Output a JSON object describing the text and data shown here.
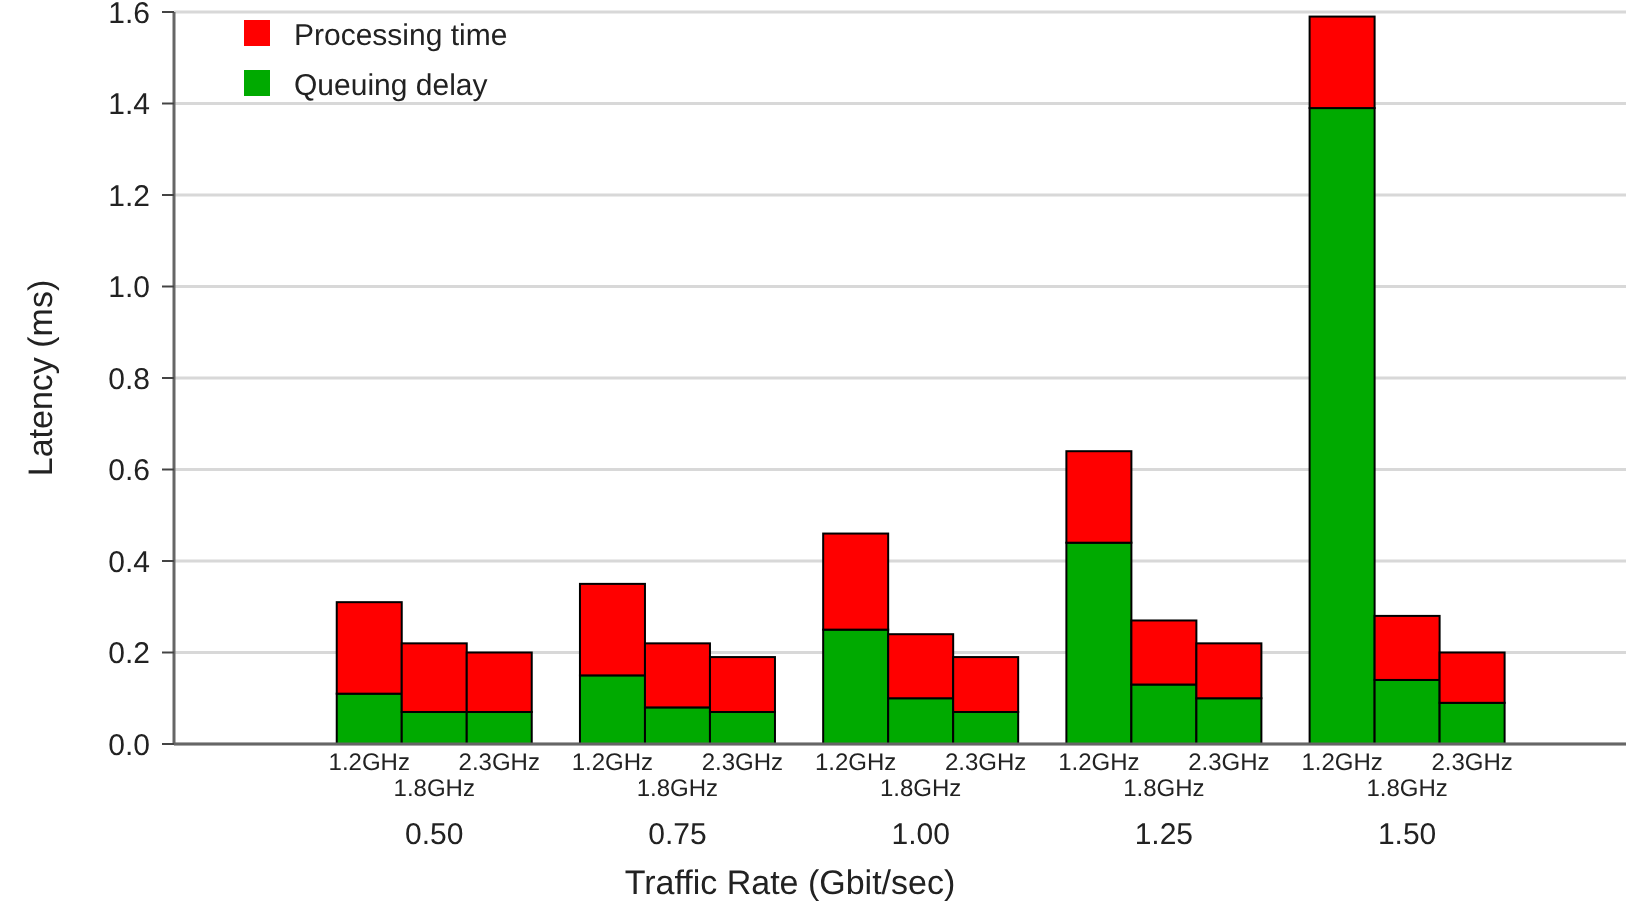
{
  "chart_data": {
    "type": "bar",
    "stacked": true,
    "xlabel": "Traffic Rate (Gbit/sec)",
    "ylabel": "Latency (ms)",
    "categories": [
      "1.2GHz",
      "1.8GHz",
      "2.3GHz",
      "1.2GHz",
      "1.8GHz",
      "2.3GHz",
      "1.2GHz",
      "1.8GHz",
      "2.3GHz",
      "1.2GHz",
      "1.8GHz",
      "2.3GHz",
      "1.2GHz",
      "1.8GHz",
      "2.3GHz"
    ],
    "annotations": [
      "0.50",
      "0.75",
      "1.00",
      "1.25",
      "1.50"
    ],
    "series": [
      {
        "name": "Queuing delay",
        "color": "#00aa00",
        "values": [
          0.11,
          0.07,
          0.07,
          0.15,
          0.08,
          0.07,
          0.25,
          0.1,
          0.07,
          0.44,
          0.13,
          0.1,
          1.39,
          0.14,
          0.09
        ]
      },
      {
        "name": "Processing time",
        "color": "#ff0000",
        "values": [
          0.2,
          0.15,
          0.13,
          0.2,
          0.14,
          0.12,
          0.21,
          0.14,
          0.12,
          0.2,
          0.14,
          0.12,
          0.2,
          0.14,
          0.11
        ]
      }
    ],
    "ylim": [
      0,
      1.6
    ],
    "yticks": [
      {
        "value": 0,
        "label": "0.0"
      },
      {
        "value": 0.2,
        "label": "0.2"
      },
      {
        "value": 0.4,
        "label": "0.4"
      },
      {
        "value": 0.6,
        "label": "0.6"
      },
      {
        "value": 0.8,
        "label": "0.8"
      },
      {
        "value": 1.0,
        "label": "1.0"
      },
      {
        "value": 1.2,
        "label": "1.2"
      },
      {
        "value": 1.4,
        "label": "1.4"
      },
      {
        "value": 1.6,
        "label": "1.6"
      }
    ],
    "grid": "y",
    "legend": "top left"
  }
}
